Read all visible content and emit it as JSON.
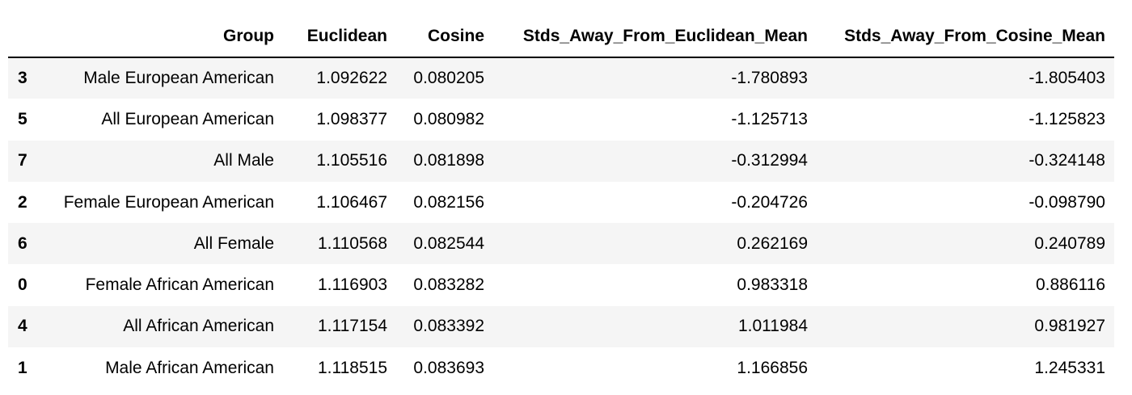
{
  "table": {
    "columns": [
      "",
      "Group",
      "Euclidean",
      "Cosine",
      "Stds_Away_From_Euclidean_Mean",
      "Stds_Away_From_Cosine_Mean"
    ],
    "rows": [
      {
        "index": "3",
        "group": "Male European American",
        "euclidean": "1.092622",
        "cosine": "0.080205",
        "stds_euclidean": "-1.780893",
        "stds_cosine": "-1.805403"
      },
      {
        "index": "5",
        "group": "All European American",
        "euclidean": "1.098377",
        "cosine": "0.080982",
        "stds_euclidean": "-1.125713",
        "stds_cosine": "-1.125823"
      },
      {
        "index": "7",
        "group": "All Male",
        "euclidean": "1.105516",
        "cosine": "0.081898",
        "stds_euclidean": "-0.312994",
        "stds_cosine": "-0.324148"
      },
      {
        "index": "2",
        "group": "Female European American",
        "euclidean": "1.106467",
        "cosine": "0.082156",
        "stds_euclidean": "-0.204726",
        "stds_cosine": "-0.098790"
      },
      {
        "index": "6",
        "group": "All Female",
        "euclidean": "1.110568",
        "cosine": "0.082544",
        "stds_euclidean": "0.262169",
        "stds_cosine": "0.240789"
      },
      {
        "index": "0",
        "group": "Female African American",
        "euclidean": "1.116903",
        "cosine": "0.083282",
        "stds_euclidean": "0.983318",
        "stds_cosine": "0.886116"
      },
      {
        "index": "4",
        "group": "All African American",
        "euclidean": "1.117154",
        "cosine": "0.083392",
        "stds_euclidean": "1.011984",
        "stds_cosine": "0.981927"
      },
      {
        "index": "1",
        "group": "Male African American",
        "euclidean": "1.118515",
        "cosine": "0.083693",
        "stds_euclidean": "1.166856",
        "stds_cosine": "1.245331"
      }
    ]
  }
}
